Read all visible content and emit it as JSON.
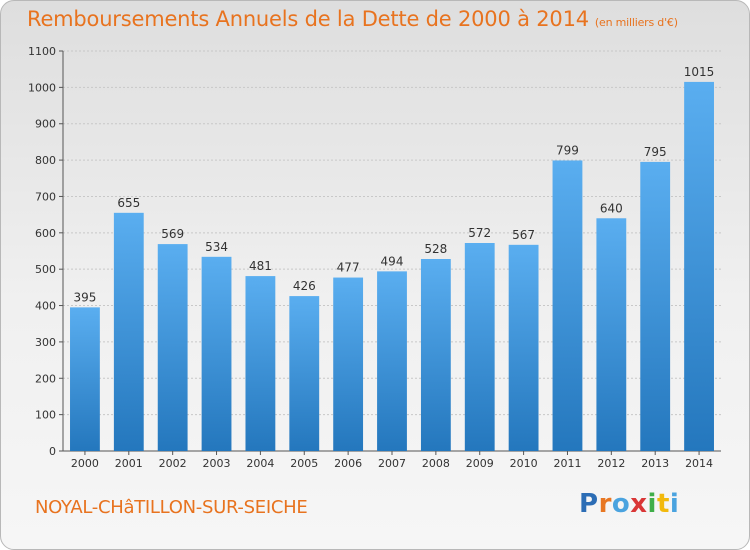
{
  "title": "Remboursements Annuels de la Dette de 2000 à 2014",
  "subtitle": "(en milliers d'€)",
  "city": "NOYAL-CHâTILLON-SUR-SEICHE",
  "logo": {
    "text": "Proxiti",
    "colors": [
      "#2c6db5",
      "#e87722",
      "#4aa3df",
      "#d93636",
      "#3fae49",
      "#f2b90d",
      "#4aa3df"
    ]
  },
  "colors": {
    "title": "#e8731f",
    "bar_light": "#5aaef0",
    "bar_dark": "#2477bd",
    "grid": "#c8c8c8"
  },
  "chart_data": {
    "type": "bar",
    "categories": [
      "2000",
      "2001",
      "2002",
      "2003",
      "2004",
      "2005",
      "2006",
      "2007",
      "2008",
      "2009",
      "2010",
      "2011",
      "2012",
      "2013",
      "2014"
    ],
    "values": [
      395,
      655,
      569,
      534,
      481,
      426,
      477,
      494,
      528,
      572,
      567,
      799,
      640,
      795,
      1015
    ],
    "ylim": [
      0,
      1100
    ],
    "yticks": [
      0,
      100,
      200,
      300,
      400,
      500,
      600,
      700,
      800,
      900,
      1000,
      1100
    ],
    "grid": true,
    "xlabel": "",
    "ylabel": ""
  }
}
